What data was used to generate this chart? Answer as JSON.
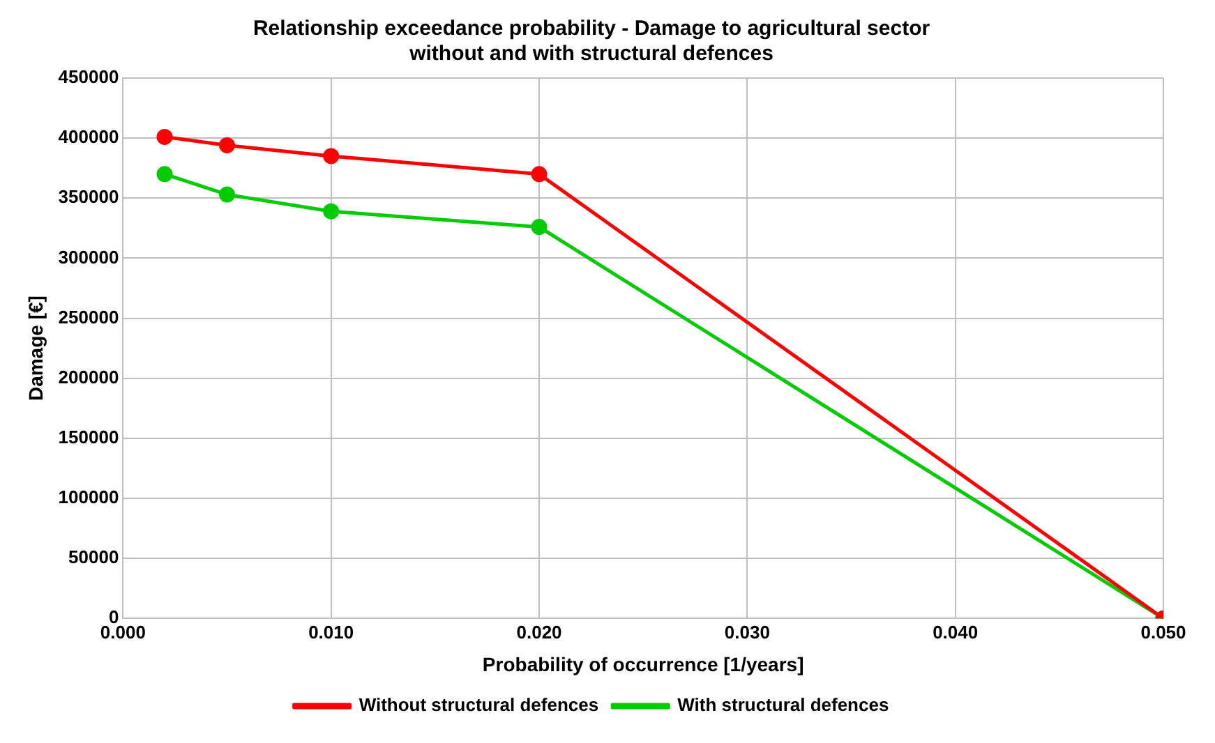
{
  "chart_data": {
    "type": "line",
    "title": "Relationship exceedance probability - Damage to agricultural sector\nwithout and with structural defences",
    "xlabel": "Probability of occurrence [1/years]",
    "ylabel": "Damage [€]",
    "x": [
      0.002,
      0.005,
      0.01,
      0.02,
      0.05
    ],
    "series": [
      {
        "name": "Without structural defences",
        "color": "#ff0000",
        "values": [
          401000,
          394000,
          385000,
          370000,
          0
        ]
      },
      {
        "name": "With structural defences",
        "color": "#00cc00",
        "values": [
          370000,
          353000,
          339000,
          326000,
          0
        ]
      }
    ],
    "xlim": [
      0,
      0.05
    ],
    "xticks": [
      {
        "value": 0,
        "label": "0.000"
      },
      {
        "value": 0.01,
        "label": "0.010"
      },
      {
        "value": 0.02,
        "label": "0.020"
      },
      {
        "value": 0.03,
        "label": "0.030"
      },
      {
        "value": 0.04,
        "label": "0.040"
      },
      {
        "value": 0.05,
        "label": "0.050"
      }
    ],
    "ylim": [
      0,
      450000
    ],
    "yticks": [
      0,
      50000,
      100000,
      150000,
      200000,
      250000,
      300000,
      350000,
      400000,
      450000
    ],
    "grid": true,
    "legend": "bottom",
    "marker": "circle",
    "line_style": "solid"
  }
}
